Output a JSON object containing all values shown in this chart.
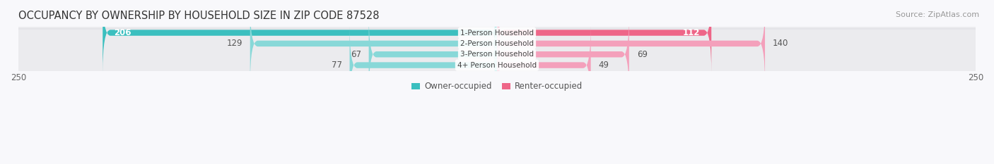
{
  "title": "OCCUPANCY BY OWNERSHIP BY HOUSEHOLD SIZE IN ZIP CODE 87528",
  "source": "Source: ZipAtlas.com",
  "categories": [
    "1-Person Household",
    "2-Person Household",
    "3-Person Household",
    "4+ Person Household"
  ],
  "owner_values": [
    206,
    129,
    67,
    77
  ],
  "renter_values": [
    112,
    140,
    69,
    49
  ],
  "max_val": 250,
  "owner_color_dark": "#3BBFBF",
  "renter_color_dark": "#EE6688",
  "owner_color_light": "#88D8D8",
  "renter_color_light": "#F4A0BB",
  "row_bg_color": "#ebebee",
  "bg_color": "#f8f8fb",
  "title_fontsize": 10.5,
  "source_fontsize": 8,
  "label_fontsize": 8.5,
  "tick_fontsize": 8.5,
  "legend_fontsize": 8.5,
  "category_fontsize": 7.5
}
